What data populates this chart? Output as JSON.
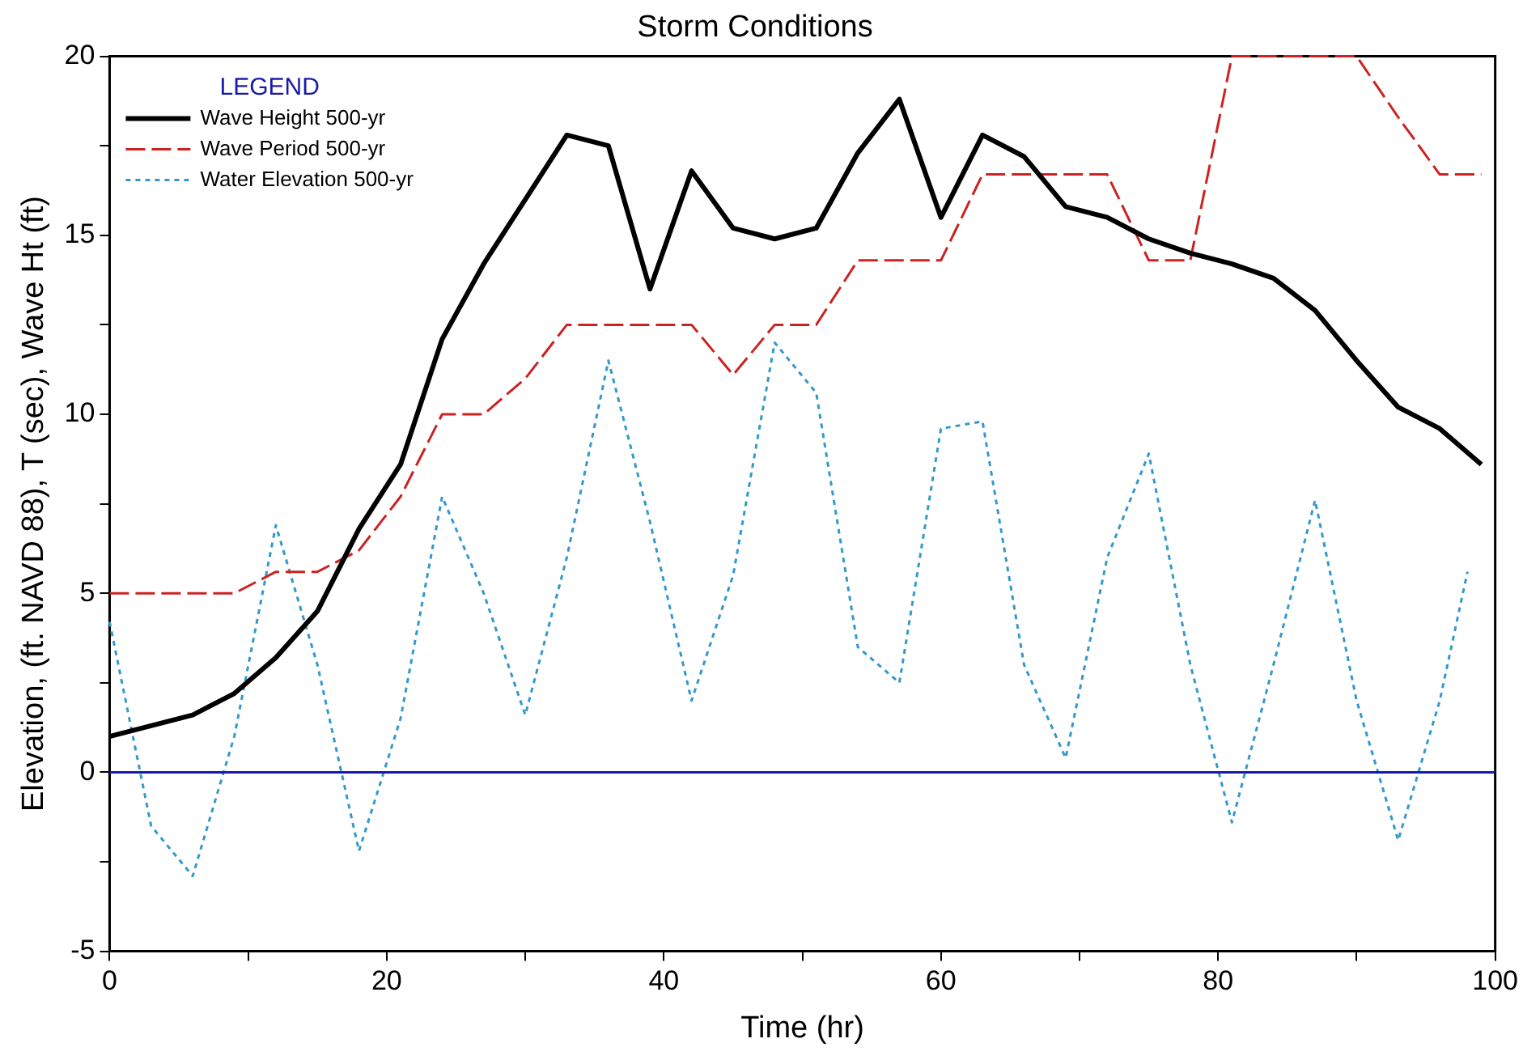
{
  "chart_data": {
    "type": "line",
    "title": "Storm Conditions",
    "xlabel": "Time (hr)",
    "ylabel": "Elevation, (ft. NAVD 88), T (sec), Wave Ht (ft)",
    "legend_title": "LEGEND",
    "legend": "top left",
    "grid": false,
    "marker": "none",
    "xlim": [
      0,
      100
    ],
    "xticks": [
      0,
      {
        "value": 10,
        "label": null
      },
      20,
      {
        "value": 30,
        "label": null
      },
      40,
      {
        "value": 50,
        "label": null
      },
      60,
      {
        "value": 70,
        "label": null
      },
      80,
      {
        "value": 90,
        "label": null
      },
      100
    ],
    "ylim": [
      -5,
      20
    ],
    "yticks": [
      -5,
      {
        "value": -2.5,
        "label": null
      },
      0,
      {
        "value": 2.5,
        "label": null
      },
      5,
      {
        "value": 7.5,
        "label": null
      },
      10,
      {
        "value": 12.5,
        "label": null
      },
      15,
      {
        "value": 17.5,
        "label": null
      },
      20
    ],
    "ref_lines": [
      {
        "axis": "y",
        "value": 0,
        "color": "#1a1aa6",
        "line_style": "solid"
      }
    ],
    "series": [
      {
        "name": "Wave Height 500-yr",
        "color": "#000000",
        "line_style": "solid",
        "x": [
          0,
          3,
          6,
          9,
          12,
          15,
          18,
          21,
          24,
          27,
          30,
          33,
          36,
          39,
          42,
          45,
          48,
          51,
          54,
          57,
          60,
          63,
          66,
          69,
          72,
          75,
          78,
          81,
          84,
          87,
          90,
          93,
          96,
          99
        ],
        "values": [
          1.0,
          1.3,
          1.6,
          2.2,
          3.2,
          4.5,
          6.8,
          8.6,
          12.1,
          14.2,
          16.0,
          17.8,
          17.5,
          13.5,
          16.8,
          15.2,
          14.9,
          15.2,
          17.3,
          18.8,
          15.5,
          17.8,
          17.2,
          15.8,
          15.5,
          14.9,
          14.5,
          14.2,
          13.8,
          12.9,
          11.5,
          10.2,
          9.6,
          8.6
        ]
      },
      {
        "name": "Wave Period 500-yr",
        "color": "#cc2222",
        "line_style": "dashed",
        "x": [
          0,
          3,
          6,
          9,
          12,
          15,
          18,
          21,
          24,
          27,
          30,
          33,
          36,
          39,
          42,
          45,
          48,
          51,
          54,
          57,
          60,
          63,
          66,
          69,
          72,
          75,
          78,
          81,
          84,
          87,
          90,
          93,
          96,
          99
        ],
        "values": [
          5,
          5,
          5,
          5,
          5.6,
          5.6,
          6.2,
          7.7,
          10,
          10,
          11,
          12.5,
          12.5,
          12.5,
          12.5,
          11.1,
          12.5,
          12.5,
          14.3,
          14.3,
          14.3,
          16.7,
          16.7,
          16.7,
          16.7,
          14.3,
          14.3,
          20,
          20,
          20,
          20,
          18.3,
          16.7,
          16.7
        ]
      },
      {
        "name": "Water Elevation 500-yr",
        "color": "#3399cc",
        "line_style": "dotted",
        "x": [
          0,
          3,
          6,
          9,
          12,
          15,
          18,
          21,
          24,
          27,
          30,
          33,
          36,
          39,
          42,
          45,
          48,
          51,
          54,
          57,
          60,
          63,
          66,
          69,
          72,
          75,
          78,
          81,
          84,
          87,
          90,
          93,
          96,
          98
        ],
        "values": [
          4.2,
          -1.5,
          -2.9,
          1,
          6.9,
          3,
          -2.2,
          1.5,
          7.7,
          5,
          1.6,
          6,
          11.5,
          7,
          2.0,
          5.5,
          12.0,
          10.6,
          3.5,
          2.5,
          9.6,
          9.8,
          3,
          0.4,
          6,
          8.9,
          3,
          -1.4,
          3,
          7.6,
          2,
          -1.9,
          2,
          5.6
        ]
      }
    ]
  }
}
